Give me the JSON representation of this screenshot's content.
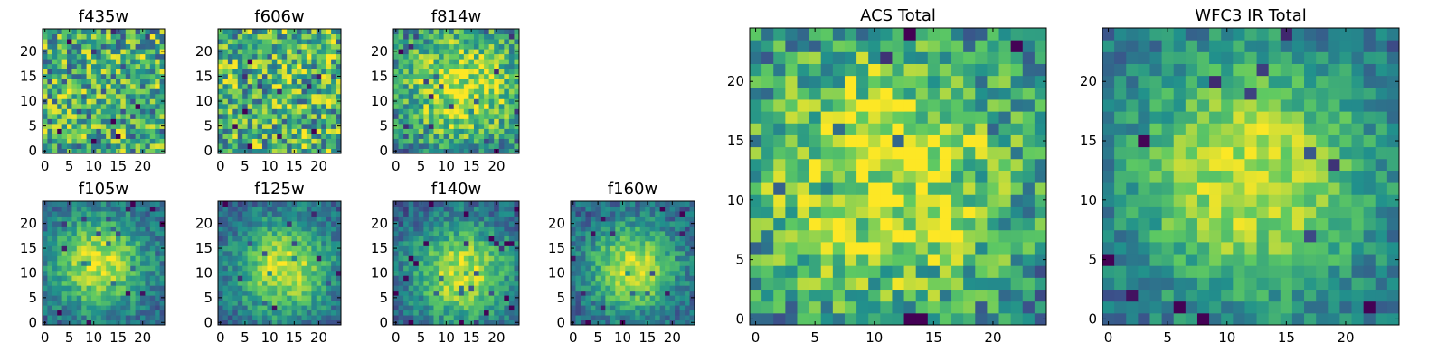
{
  "colormap": "viridis",
  "colormap_stops": [
    "#440154",
    "#3b528b",
    "#21918c",
    "#5ec962",
    "#fde725"
  ],
  "chart_data": [
    {
      "type": "heatmap",
      "title": "f435w",
      "grid_size": [
        25,
        25
      ],
      "x_range": [
        -0.5,
        24.5
      ],
      "y_range": [
        -0.5,
        24.5
      ],
      "xticks": [
        0,
        5,
        10,
        15,
        20
      ],
      "yticks": [
        0,
        5,
        10,
        15,
        20
      ],
      "pattern": "noise",
      "peak": [
        12,
        12
      ],
      "spread": 0,
      "seed": 11,
      "mean_level": 0.62,
      "grid": false
    },
    {
      "type": "heatmap",
      "title": "f606w",
      "grid_size": [
        25,
        25
      ],
      "x_range": [
        -0.5,
        24.5
      ],
      "y_range": [
        -0.5,
        24.5
      ],
      "xticks": [
        0,
        5,
        10,
        15,
        20
      ],
      "yticks": [
        0,
        5,
        10,
        15,
        20
      ],
      "pattern": "noise",
      "peak": [
        12,
        12
      ],
      "spread": 0,
      "seed": 23,
      "mean_level": 0.66,
      "grid": false
    },
    {
      "type": "heatmap",
      "title": "f814w",
      "grid_size": [
        25,
        25
      ],
      "x_range": [
        -0.5,
        24.5
      ],
      "y_range": [
        -0.5,
        24.5
      ],
      "xticks": [
        0,
        5,
        10,
        15,
        20
      ],
      "yticks": [
        0,
        5,
        10,
        15,
        20
      ],
      "pattern": "noise",
      "peak": [
        13,
        13
      ],
      "spread": 10,
      "seed": 37,
      "mean_level": 0.64,
      "grid": false
    },
    {
      "type": "heatmap",
      "title": "f105w",
      "grid_size": [
        25,
        25
      ],
      "x_range": [
        -0.5,
        24.5
      ],
      "y_range": [
        -0.5,
        24.5
      ],
      "xticks": [
        0,
        5,
        10,
        15,
        20
      ],
      "yticks": [
        0,
        5,
        10,
        15,
        20
      ],
      "pattern": "source",
      "peak": [
        11,
        12
      ],
      "spread": 7,
      "seed": 41,
      "mean_level": 0.6,
      "grid": false
    },
    {
      "type": "heatmap",
      "title": "f125w",
      "grid_size": [
        25,
        25
      ],
      "x_range": [
        -0.5,
        24.5
      ],
      "y_range": [
        -0.5,
        24.5
      ],
      "xticks": [
        0,
        5,
        10,
        15,
        20
      ],
      "yticks": [
        0,
        5,
        10,
        15,
        20
      ],
      "pattern": "source",
      "peak": [
        13,
        11
      ],
      "spread": 7,
      "seed": 53,
      "mean_level": 0.62,
      "grid": false
    },
    {
      "type": "heatmap",
      "title": "f140w",
      "grid_size": [
        25,
        25
      ],
      "x_range": [
        -0.5,
        24.5
      ],
      "y_range": [
        -0.5,
        24.5
      ],
      "xticks": [
        0,
        5,
        10,
        15,
        20
      ],
      "yticks": [
        0,
        5,
        10,
        15,
        20
      ],
      "pattern": "source",
      "peak": [
        13,
        10
      ],
      "spread": 7,
      "seed": 67,
      "mean_level": 0.62,
      "grid": false
    },
    {
      "type": "heatmap",
      "title": "f160w",
      "grid_size": [
        25,
        25
      ],
      "x_range": [
        -0.5,
        24.5
      ],
      "y_range": [
        -0.5,
        24.5
      ],
      "xticks": [
        0,
        5,
        10,
        15,
        20
      ],
      "yticks": [
        0,
        5,
        10,
        15,
        20
      ],
      "pattern": "source",
      "peak": [
        12,
        11
      ],
      "spread": 6.5,
      "seed": 79,
      "mean_level": 0.6,
      "grid": false
    },
    {
      "type": "heatmap",
      "title": "ACS Total",
      "grid_size": [
        25,
        25
      ],
      "x_range": [
        -0.5,
        24.5
      ],
      "y_range": [
        -0.5,
        24.5
      ],
      "xticks": [
        0,
        5,
        10,
        15,
        20
      ],
      "yticks": [
        0,
        5,
        10,
        15,
        20
      ],
      "pattern": "noise",
      "peak": [
        11,
        12
      ],
      "spread": 10,
      "seed": 97,
      "mean_level": 0.68,
      "grid": false
    },
    {
      "type": "heatmap",
      "title": "WFC3 IR Total",
      "grid_size": [
        25,
        25
      ],
      "x_range": [
        -0.5,
        24.5
      ],
      "y_range": [
        -0.5,
        24.5
      ],
      "xticks": [
        0,
        5,
        10,
        15,
        20
      ],
      "yticks": [
        0,
        5,
        10,
        15,
        20
      ],
      "pattern": "source",
      "peak": [
        12,
        12
      ],
      "spread": 8,
      "seed": 113,
      "mean_level": 0.64,
      "grid": false
    }
  ]
}
